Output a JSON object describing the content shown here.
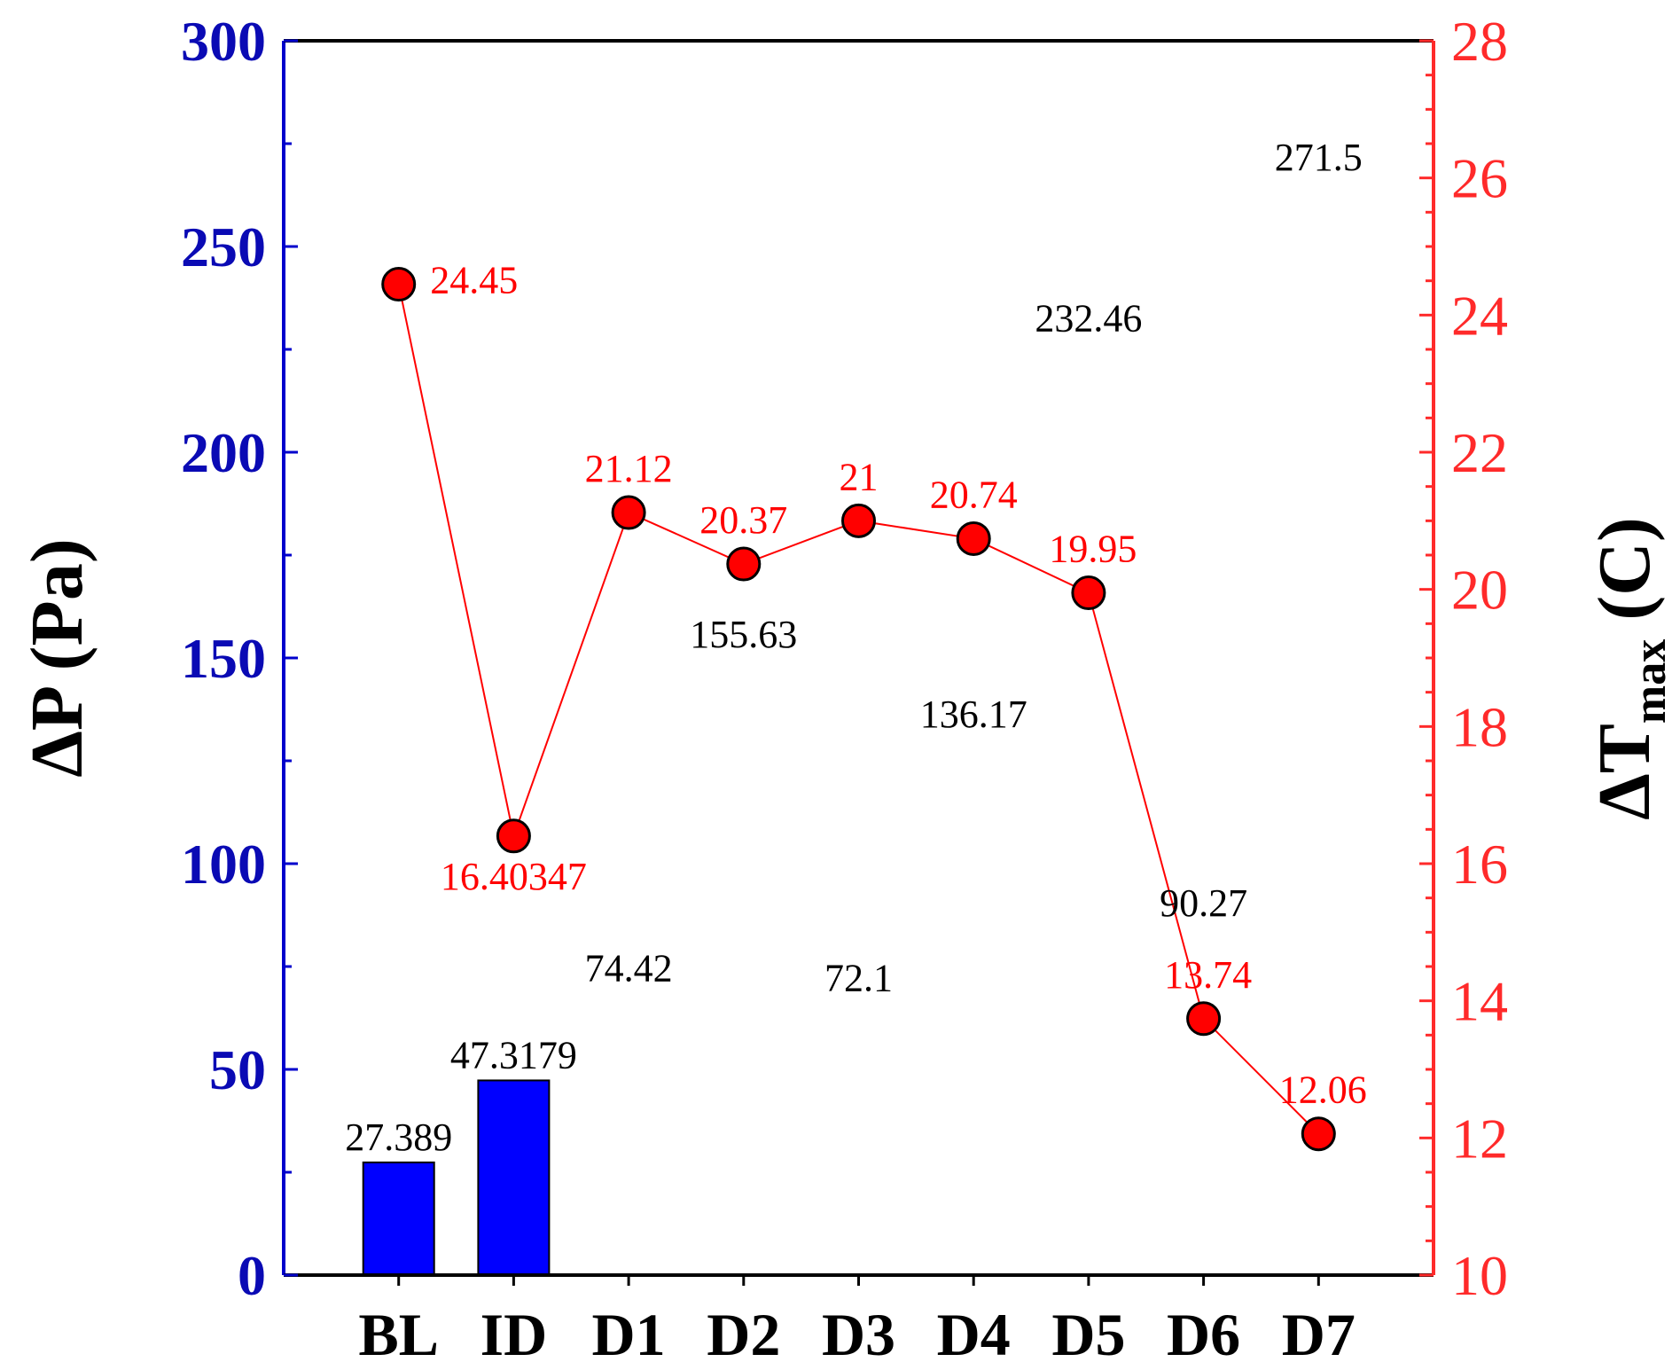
{
  "chart_data": {
    "type": "bar+line",
    "categories": [
      "BL",
      "ID",
      "D1",
      "D2",
      "D3",
      "D4",
      "D5",
      "D6",
      "D7"
    ],
    "series": [
      {
        "axis": "left",
        "type": "bar",
        "values": [
          27.389,
          47.3179,
          74.42,
          155.63,
          72.1,
          136.17,
          232.46,
          90.27,
          271.5
        ],
        "labels": [
          "27.389",
          "47.3179",
          "74.42",
          "155.63",
          "72.1",
          "136.17",
          "232.46",
          "90.27",
          "271.5"
        ],
        "bar_drawn": [
          true,
          true,
          false,
          false,
          false,
          false,
          false,
          false,
          false
        ],
        "color": "#0000ff"
      },
      {
        "axis": "right",
        "type": "line",
        "values": [
          24.45,
          16.40347,
          21.12,
          20.37,
          21,
          20.74,
          19.95,
          13.74,
          12.06
        ],
        "labels": [
          "24.45",
          "16.40347",
          "21.12",
          "20.37",
          "21",
          "20.74",
          "19.95",
          "13.74",
          "12.06"
        ],
        "color": "#ff0000"
      }
    ],
    "y_left": {
      "label_main": "ΔP (Pa)",
      "ylim": [
        0,
        300
      ],
      "ticks": [
        "0",
        "50",
        "100",
        "150",
        "200",
        "250",
        "300"
      ],
      "color": "#0a0ab4"
    },
    "y_right": {
      "label_main": "ΔT",
      "label_sub": "max",
      "label_suffix": " (C)",
      "ylim": [
        10,
        28
      ],
      "ticks": [
        "10",
        "12",
        "14",
        "16",
        "18",
        "20",
        "22",
        "24",
        "26",
        "28"
      ],
      "color": "#ff2a2a"
    },
    "grid": false
  }
}
